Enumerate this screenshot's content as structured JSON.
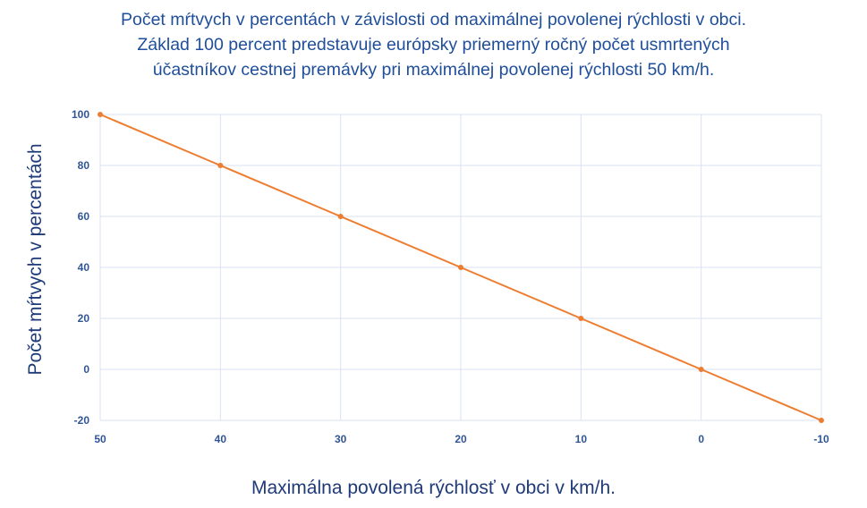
{
  "chart_data": {
    "type": "line",
    "title": [
      "Počet mŕtvych v percentách v závislosti od maximálnej povolenej rýchlosti v obci.",
      "Základ 100 percent predstavuje európsky priemerný ročný počet usmrtených",
      "účastníkov cestnej premávky pri maximálnej povolenej rýchlosti 50 km/h."
    ],
    "xlabel": "Maximálna povolená rýchlosť v obci v km/h.",
    "ylabel": "Počet mŕtvych v percentách",
    "x": [
      50,
      40,
      30,
      20,
      10,
      0,
      -10
    ],
    "x_tick_labels": [
      "50",
      "40",
      "30",
      "20",
      "10",
      "0",
      "-10"
    ],
    "y_tick_labels": [
      "100",
      "80",
      "60",
      "40",
      "20",
      "0",
      "-20"
    ],
    "y_ticks": [
      100,
      80,
      60,
      40,
      20,
      0,
      -20
    ],
    "ylim": [
      -20,
      100
    ],
    "xlim": [
      50,
      -10
    ],
    "grid": true,
    "series": [
      {
        "values": [
          100,
          80,
          60,
          40,
          20,
          0,
          -20
        ]
      }
    ],
    "colors": {
      "line": "#ed7d31",
      "marker": "#ed7d31",
      "grid": "#d9e1f2",
      "axis_text": "#2f5597",
      "title": "#1f4e9a"
    }
  }
}
